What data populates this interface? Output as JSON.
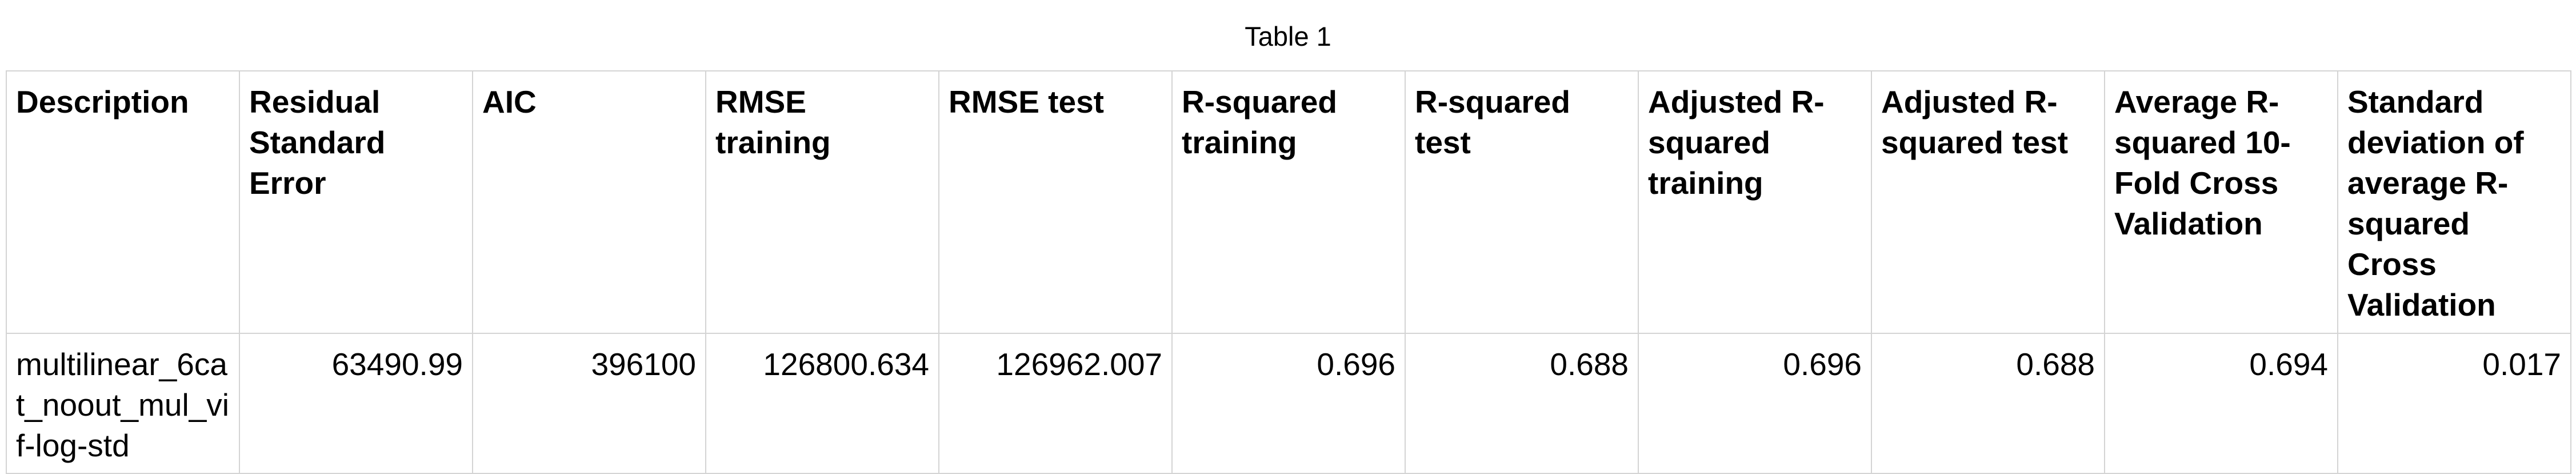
{
  "caption": "Table 1",
  "table": {
    "headers": [
      "Description",
      "Residual Standard Error",
      "AIC",
      "RMSE training",
      "RMSE test",
      "R-squared training",
      "R-squared test",
      "Adjusted R-squared training",
      "Adjusted R-squared test",
      "Average R-squared 10-Fold Cross Validation",
      "Standard deviation of average R-squared Cross Validation"
    ],
    "rows": [
      [
        "multilinear_6cat_noout_mul_vif-log-std",
        "63490.99",
        "396100",
        "126800.634",
        "126962.007",
        "0.696",
        "0.688",
        "0.696",
        "0.688",
        "0.694",
        "0.017"
      ]
    ]
  }
}
